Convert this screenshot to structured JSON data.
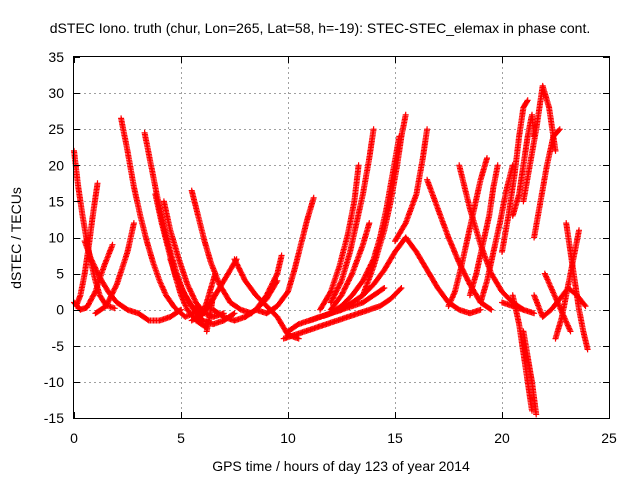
{
  "chart_data": {
    "type": "scatter",
    "title": "dSTEC Iono. truth (chur, Lon=265, Lat=58, h=-19): STEC-STEC_elemax in phase cont.",
    "xlabel": "GPS time / hours of day 123 of year 2014",
    "ylabel": "dSTEC  / TECUs",
    "xlim": [
      0,
      25
    ],
    "ylim": [
      -15,
      35
    ],
    "xticks": [
      0,
      5,
      10,
      15,
      20,
      25
    ],
    "yticks": [
      -15,
      -10,
      -5,
      0,
      5,
      10,
      15,
      20,
      25,
      30,
      35
    ],
    "grid": true,
    "marker": "plus",
    "color": "#ff0000",
    "passes": [
      {
        "x": [
          0.0,
          0.2,
          0.4,
          0.6,
          0.8,
          1.0,
          1.2,
          1.5,
          1.9
        ],
        "y": [
          22.0,
          17.0,
          13.0,
          9.5,
          6.5,
          4.0,
          2.0,
          0.6,
          0.2
        ]
      },
      {
        "x": [
          0.1,
          0.3,
          0.5,
          0.7,
          0.9,
          1.1
        ],
        "y": [
          0.5,
          2.0,
          5.0,
          9.0,
          13.5,
          17.5
        ]
      },
      {
        "x": [
          0.0,
          0.3,
          0.6,
          1.0,
          1.4,
          1.8
        ],
        "y": [
          1.0,
          0.0,
          0.3,
          2.5,
          6.0,
          9.0
        ]
      },
      {
        "x": [
          0.5,
          0.8,
          1.2,
          1.6,
          2.0,
          2.5,
          3.0,
          3.5,
          4.0,
          4.5,
          5.0
        ],
        "y": [
          9.5,
          7.0,
          4.5,
          2.5,
          1.0,
          0.0,
          -0.5,
          -1.5,
          -1.5,
          -1.0,
          0.0
        ]
      },
      {
        "x": [
          1.0,
          1.5,
          2.0,
          2.5,
          2.8
        ],
        "y": [
          -0.5,
          0.5,
          3.5,
          8.0,
          12.0
        ]
      },
      {
        "x": [
          2.2,
          2.5,
          2.8,
          3.1,
          3.4,
          3.7,
          4.0,
          4.3,
          4.7,
          5.2,
          5.6,
          6.0
        ],
        "y": [
          26.5,
          22.0,
          17.0,
          13.0,
          9.5,
          6.5,
          4.0,
          2.0,
          0.3,
          -1.0,
          -0.5,
          0.0
        ]
      },
      {
        "x": [
          3.3,
          3.6,
          3.9,
          4.2,
          4.5,
          4.8,
          5.1,
          5.5,
          6.0
        ],
        "y": [
          24.5,
          20.0,
          15.5,
          11.5,
          8.0,
          5.0,
          2.5,
          0.5,
          -0.5
        ]
      },
      {
        "x": [
          3.8,
          4.1,
          4.4,
          4.7,
          5.0,
          5.3,
          5.7,
          6.2
        ],
        "y": [
          16.0,
          12.0,
          8.5,
          5.0,
          2.0,
          0.0,
          -1.5,
          -2.5
        ]
      },
      {
        "x": [
          4.2,
          4.5,
          4.9,
          5.3,
          5.7,
          6.1,
          6.5,
          7.0
        ],
        "y": [
          15.0,
          11.0,
          7.0,
          3.5,
          1.0,
          -0.5,
          -1.0,
          -0.5
        ]
      },
      {
        "x": [
          4.5,
          4.8,
          5.2,
          5.6,
          6.0,
          6.5,
          7.0,
          7.5
        ],
        "y": [
          7.0,
          4.5,
          2.0,
          0.0,
          -1.5,
          -2.0,
          -1.5,
          -0.5
        ]
      },
      {
        "x": [
          5.8,
          6.0,
          6.2,
          6.4,
          6.6
        ],
        "y": [
          -1.5,
          -0.5,
          1.0,
          3.0,
          5.0
        ]
      },
      {
        "x": [
          6.2,
          6.3,
          6.4,
          6.5
        ],
        "y": [
          -3.0,
          -1.5,
          0.0,
          2.0
        ]
      },
      {
        "x": [
          5.5,
          5.8,
          6.2,
          6.7,
          7.2,
          7.6
        ],
        "y": [
          -1.5,
          -1.0,
          0.0,
          2.5,
          5.0,
          7.0
        ]
      },
      {
        "x": [
          5.5,
          5.8,
          6.1,
          6.4,
          6.8,
          7.3,
          7.8,
          8.3
        ],
        "y": [
          16.5,
          13.0,
          9.5,
          6.5,
          3.5,
          1.0,
          0.0,
          -0.5
        ]
      },
      {
        "x": [
          7.5,
          8.0,
          8.5,
          9.0,
          9.5,
          10.0,
          10.5
        ],
        "y": [
          7.0,
          4.0,
          2.0,
          0.5,
          -1.0,
          -3.5,
          -4.0
        ]
      },
      {
        "x": [
          6.5,
          7.0,
          7.5,
          8.0,
          8.5,
          9.0,
          9.5
        ],
        "y": [
          0.0,
          -1.0,
          -1.5,
          -1.0,
          0.0,
          1.5,
          4.0
        ]
      },
      {
        "x": [
          8.0,
          8.5,
          9.0,
          9.5,
          9.7
        ],
        "y": [
          -1.0,
          0.0,
          2.0,
          5.0,
          7.5
        ]
      },
      {
        "x": [
          9.8,
          10.3,
          10.8,
          11.3,
          11.8,
          12.3,
          12.8,
          13.3,
          13.8,
          14.3,
          14.8,
          15.3
        ],
        "y": [
          -4.0,
          -3.5,
          -3.0,
          -2.5,
          -2.0,
          -1.5,
          -1.0,
          -0.5,
          0.0,
          0.5,
          1.5,
          3.0
        ]
      },
      {
        "x": [
          8.5,
          9.0,
          9.5,
          10.0,
          10.3,
          10.6,
          10.9,
          11.2
        ],
        "y": [
          0.0,
          -0.5,
          0.5,
          2.5,
          5.5,
          9.0,
          12.5,
          15.5
        ]
      },
      {
        "x": [
          10.0,
          10.5,
          11.0,
          11.5,
          12.0,
          12.5,
          13.0,
          13.5,
          14.0,
          14.5
        ],
        "y": [
          -3.0,
          -2.0,
          -1.5,
          -1.0,
          -0.5,
          0.0,
          0.5,
          1.0,
          2.0,
          3.0
        ]
      },
      {
        "x": [
          11.0,
          11.5,
          12.0,
          12.5,
          13.0,
          13.5,
          14.0,
          14.5,
          15.0,
          15.5
        ],
        "y": [
          -1.5,
          -1.0,
          -0.5,
          0.0,
          1.0,
          2.0,
          3.5,
          5.5,
          8.0,
          10.0
        ]
      },
      {
        "x": [
          11.5,
          12.0,
          12.5,
          13.0,
          13.5,
          14.0,
          14.3,
          14.6,
          14.9,
          15.2
        ],
        "y": [
          -1.0,
          -0.5,
          0.5,
          2.0,
          4.0,
          7.0,
          10.0,
          14.0,
          19.0,
          24.0
        ]
      },
      {
        "x": [
          12.0,
          12.5,
          13.0,
          13.5,
          13.8
        ],
        "y": [
          0.0,
          2.0,
          5.0,
          9.0,
          12.0
        ]
      },
      {
        "x": [
          12.0,
          12.5,
          12.9,
          13.2,
          13.5,
          13.8,
          14.0
        ],
        "y": [
          1.0,
          4.0,
          8.0,
          12.0,
          16.0,
          21.0,
          25.0
        ]
      },
      {
        "x": [
          11.5,
          12.0,
          12.4,
          12.8,
          13.1,
          13.3
        ],
        "y": [
          0.0,
          2.5,
          6.0,
          10.5,
          15.0,
          20.0
        ]
      },
      {
        "x": [
          13.5,
          14.0,
          14.5,
          14.8,
          15.1,
          15.3,
          15.5
        ],
        "y": [
          2.0,
          6.0,
          11.0,
          15.0,
          20.0,
          24.0,
          27.0
        ]
      },
      {
        "x": [
          15.0,
          15.5,
          16.0,
          16.3,
          16.5
        ],
        "y": [
          9.5,
          12.0,
          16.0,
          21.0,
          25.0
        ]
      },
      {
        "x": [
          15.5,
          16.0,
          16.5,
          17.0,
          17.5,
          18.0,
          18.5,
          19.0
        ],
        "y": [
          10.0,
          8.0,
          5.5,
          3.0,
          1.0,
          0.0,
          -0.5,
          0.0
        ]
      },
      {
        "x": [
          16.5,
          17.0,
          17.5,
          18.0,
          18.5,
          19.0,
          19.5
        ],
        "y": [
          18.0,
          14.0,
          10.0,
          6.5,
          3.5,
          1.0,
          0.0
        ]
      },
      {
        "x": [
          18.0,
          18.5,
          19.0,
          19.5,
          20.0,
          20.5,
          21.0
        ],
        "y": [
          20.0,
          14.0,
          9.0,
          5.0,
          2.5,
          1.0,
          0.0
        ]
      },
      {
        "x": [
          17.5,
          17.8,
          18.1,
          18.4,
          18.7,
          19.0,
          19.3
        ],
        "y": [
          0.5,
          2.5,
          6.0,
          10.0,
          14.0,
          18.0,
          21.0
        ]
      },
      {
        "x": [
          18.5,
          18.8,
          19.1,
          19.4,
          19.6,
          19.8
        ],
        "y": [
          2.0,
          5.0,
          9.0,
          13.0,
          17.0,
          20.0
        ]
      },
      {
        "x": [
          19.0,
          19.3,
          19.6,
          19.9,
          20.2,
          20.5
        ],
        "y": [
          1.0,
          4.0,
          8.0,
          12.0,
          16.5,
          20.0
        ]
      },
      {
        "x": [
          20.0,
          20.3,
          20.6,
          20.8,
          21.0,
          21.2
        ],
        "y": [
          8.0,
          13.0,
          19.0,
          24.0,
          28.0,
          29.0
        ]
      },
      {
        "x": [
          20.5,
          20.8,
          21.0,
          21.2,
          21.4,
          21.5
        ],
        "y": [
          13.0,
          16.0,
          20.0,
          24.0,
          27.0,
          24.0
        ]
      },
      {
        "x": [
          21.0,
          21.3,
          21.6,
          21.9,
          22.2,
          22.5
        ],
        "y": [
          15.0,
          20.0,
          25.0,
          31.0,
          28.0,
          22.0
        ]
      },
      {
        "x": [
          21.5,
          21.8,
          22.1,
          22.4,
          22.7
        ],
        "y": [
          10.0,
          15.0,
          20.0,
          24.0,
          25.0
        ]
      },
      {
        "x": [
          20.5,
          20.8,
          21.0,
          21.2,
          21.4
        ],
        "y": [
          2.0,
          -2.0,
          -6.0,
          -10.0,
          -14.0
        ]
      },
      {
        "x": [
          21.0,
          21.2,
          21.4,
          21.6
        ],
        "y": [
          -3.0,
          -6.5,
          -10.0,
          -14.5
        ]
      },
      {
        "x": [
          21.5,
          21.9,
          22.3,
          22.7,
          23.1,
          23.5,
          23.9
        ],
        "y": [
          2.0,
          -1.0,
          0.0,
          1.5,
          3.0,
          2.0,
          0.5
        ]
      },
      {
        "x": [
          22.5,
          22.8,
          23.0,
          23.2,
          23.4,
          23.6
        ],
        "y": [
          -4.0,
          -1.0,
          2.0,
          5.0,
          8.0,
          11.0
        ]
      },
      {
        "x": [
          23.0,
          23.2,
          23.4,
          23.6,
          23.8,
          24.0
        ],
        "y": [
          12.0,
          8.0,
          4.0,
          0.0,
          -3.0,
          -5.5
        ]
      },
      {
        "x": [
          22.0,
          22.3,
          22.6,
          22.9,
          23.2
        ],
        "y": [
          5.0,
          3.0,
          1.0,
          -1.0,
          -3.0
        ]
      },
      {
        "x": [
          20.0,
          20.5,
          21.0,
          21.5
        ],
        "y": [
          1.0,
          0.5,
          0.0,
          -0.5
        ]
      }
    ]
  }
}
